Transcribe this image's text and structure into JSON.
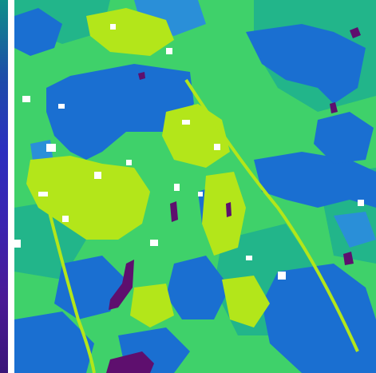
{
  "map": {
    "classes": [
      {
        "color": "#1a6fd1"
      },
      {
        "color": "#2a8fd8"
      },
      {
        "color": "#22b58a"
      },
      {
        "color": "#3fd16a"
      },
      {
        "color": "#b3e61a"
      },
      {
        "color": "#5e0f6e"
      },
      {
        "color": "#ffffff"
      }
    ],
    "legend_gradient": [
      "#0e8f8a",
      "#1d4ea8",
      "#2b2fbf",
      "#3a24b0",
      "#4a1a96",
      "#3a1578"
    ]
  }
}
